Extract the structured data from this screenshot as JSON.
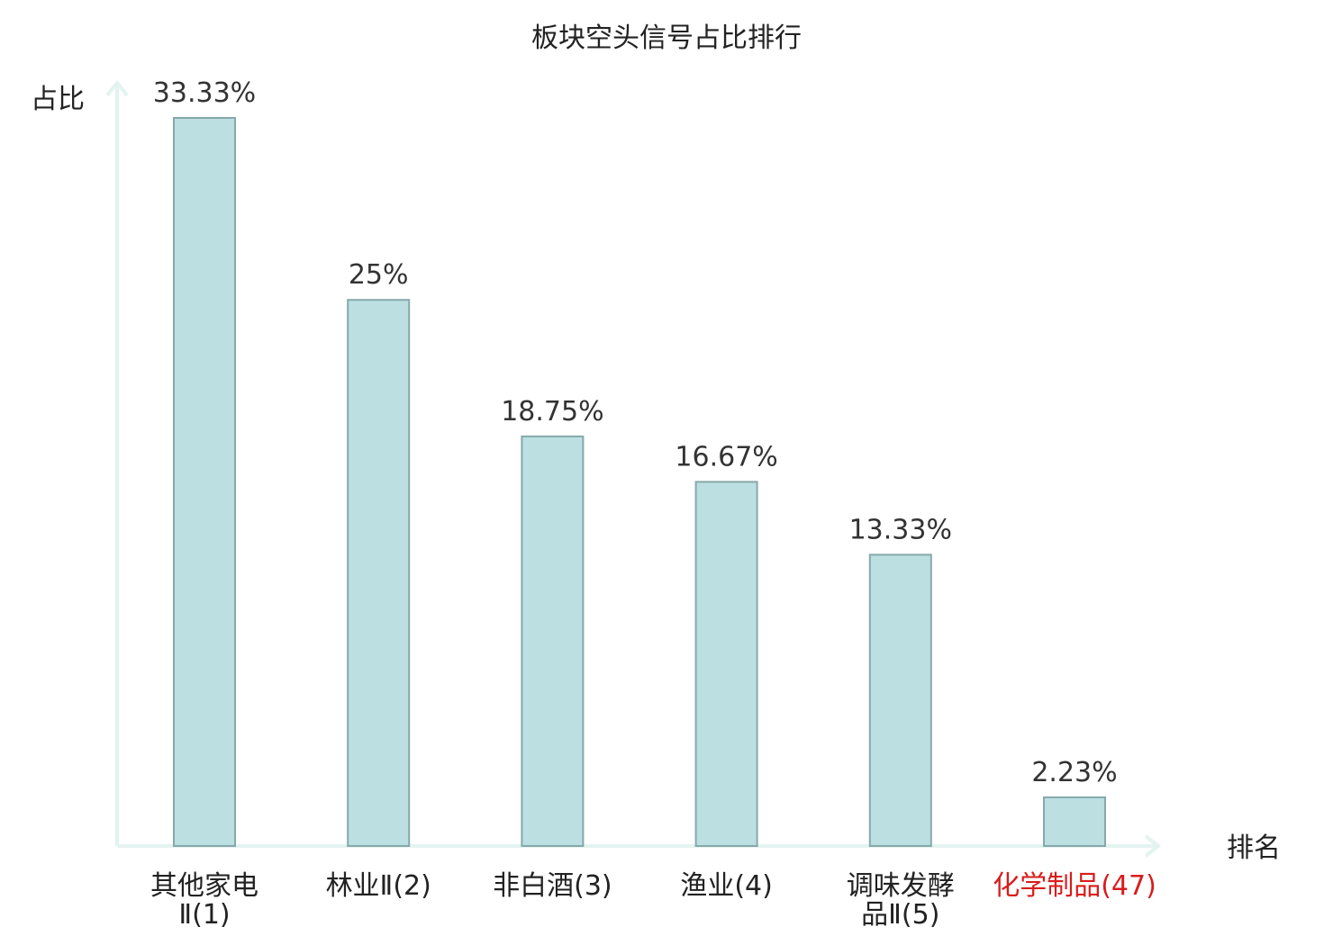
{
  "colors": {
    "bar_fill": "#bce0e2",
    "bar_stroke": "#86a8ab",
    "axis": "#e3f3f0",
    "text": "#333333",
    "highlight": "#d91c1c"
  },
  "chart_data": {
    "type": "bar",
    "title": "板块空头信号占比排行",
    "ylabel": "占比",
    "xlabel": "排名",
    "ylim": [
      0,
      35
    ],
    "grid": false,
    "legend": "none",
    "categories": [
      {
        "lines": [
          "其他家电",
          "Ⅱ(1)"
        ],
        "highlight": false
      },
      {
        "lines": [
          "林业Ⅱ(2)"
        ],
        "highlight": false
      },
      {
        "lines": [
          "非白酒(3)"
        ],
        "highlight": false
      },
      {
        "lines": [
          "渔业(4)"
        ],
        "highlight": false
      },
      {
        "lines": [
          "调味发酵",
          "品Ⅱ(5)"
        ],
        "highlight": false
      },
      {
        "lines": [
          "化学制品(47)"
        ],
        "highlight": true
      }
    ],
    "values": [
      33.33,
      25,
      18.75,
      16.67,
      13.33,
      2.23
    ],
    "value_labels": [
      "33.33%",
      "25%",
      "18.75%",
      "16.67%",
      "13.33%",
      "2.23%"
    ]
  }
}
